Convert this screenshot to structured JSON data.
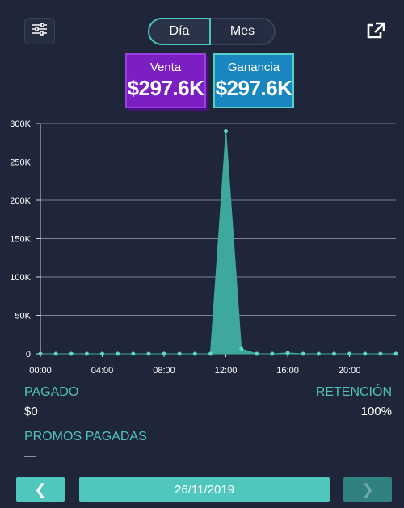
{
  "toggle": {
    "day_label": "Día",
    "month_label": "Mes",
    "selected": "day"
  },
  "kpis": {
    "venta": {
      "label": "Venta",
      "value": "$297.6K",
      "color": "#7b1fc2"
    },
    "ganancia": {
      "label": "Ganancia",
      "value": "$297.6K",
      "color": "#1a86c0"
    }
  },
  "icons": {
    "filter": "sliders-icon",
    "external": "external-link-icon"
  },
  "chart_data": {
    "type": "area",
    "x_tick_labels": [
      "00:00",
      "04:00",
      "08:00",
      "12:00",
      "16:00",
      "20:00"
    ],
    "y_tick_labels": [
      "0",
      "50K",
      "100K",
      "150K",
      "200K",
      "250K",
      "300K"
    ],
    "x": [
      0,
      1,
      2,
      3,
      4,
      5,
      6,
      7,
      8,
      9,
      10,
      11,
      12,
      13,
      14,
      15,
      16,
      17,
      18,
      19,
      20,
      21,
      22,
      23
    ],
    "series": [
      {
        "values": [
          0,
          0,
          0,
          0,
          0,
          0,
          0,
          0,
          0,
          0,
          0,
          0,
          290000,
          6500,
          0,
          0,
          1200,
          0,
          0,
          0,
          0,
          0,
          0,
          0
        ]
      }
    ],
    "ylim": [
      0,
      300000
    ],
    "xlim": [
      0,
      23
    ],
    "grid": true,
    "colors": {
      "area": "#3fa89e",
      "point": "#5fd3c6",
      "grid": "#ffffff"
    }
  },
  "stats": {
    "pagado_label": "PAGADO",
    "pagado_value": "$0",
    "retencion_label": "RETENCIÓN",
    "retencion_value": "100%",
    "promos_label": "PROMOS PAGADAS",
    "promos_value": "—"
  },
  "footer": {
    "prev": "❮",
    "date": "26/11/2019",
    "next": "❯"
  }
}
